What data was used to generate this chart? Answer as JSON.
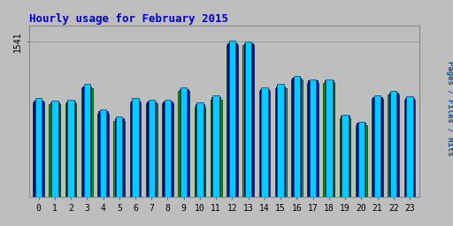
{
  "title": "Hourly usage for February 2015",
  "title_color": "#0000cc",
  "ylabel": "Pages / Files / Hits",
  "background_color": "#bebebe",
  "plot_bg_color": "#bebebe",
  "hours": [
    0,
    1,
    2,
    3,
    4,
    5,
    6,
    7,
    8,
    9,
    10,
    11,
    12,
    13,
    14,
    15,
    16,
    17,
    18,
    19,
    20,
    21,
    22,
    23
  ],
  "ytick_label": "1541",
  "ytick_value": 1541,
  "bar_width": 0.7,
  "hits": [
    980,
    960,
    970,
    1120,
    870,
    800,
    980,
    970,
    970,
    1090,
    940,
    1010,
    1550,
    1545,
    1090,
    1120,
    1200,
    1170,
    1170,
    820,
    750,
    1010,
    1050,
    1000
  ],
  "files": [
    960,
    940,
    950,
    1100,
    850,
    780,
    960,
    950,
    950,
    1070,
    920,
    990,
    1530,
    1525,
    1070,
    1100,
    1185,
    1155,
    1155,
    805,
    735,
    995,
    1035,
    985
  ],
  "pages": [
    940,
    920,
    930,
    1080,
    830,
    760,
    940,
    930,
    930,
    1050,
    900,
    970,
    1510,
    1505,
    1050,
    1080,
    1165,
    1135,
    1135,
    785,
    715,
    975,
    1015,
    965
  ],
  "hits_color": "#00ccff",
  "files_color": "#0000dd",
  "pages_color": "#00aa00",
  "hits_edge": "#005588",
  "files_edge": "#000066",
  "pages_edge": "#004400",
  "ylim_max": 1700,
  "ylim_min": 0,
  "figsize": [
    5.12,
    2.56
  ],
  "dpi": 100
}
